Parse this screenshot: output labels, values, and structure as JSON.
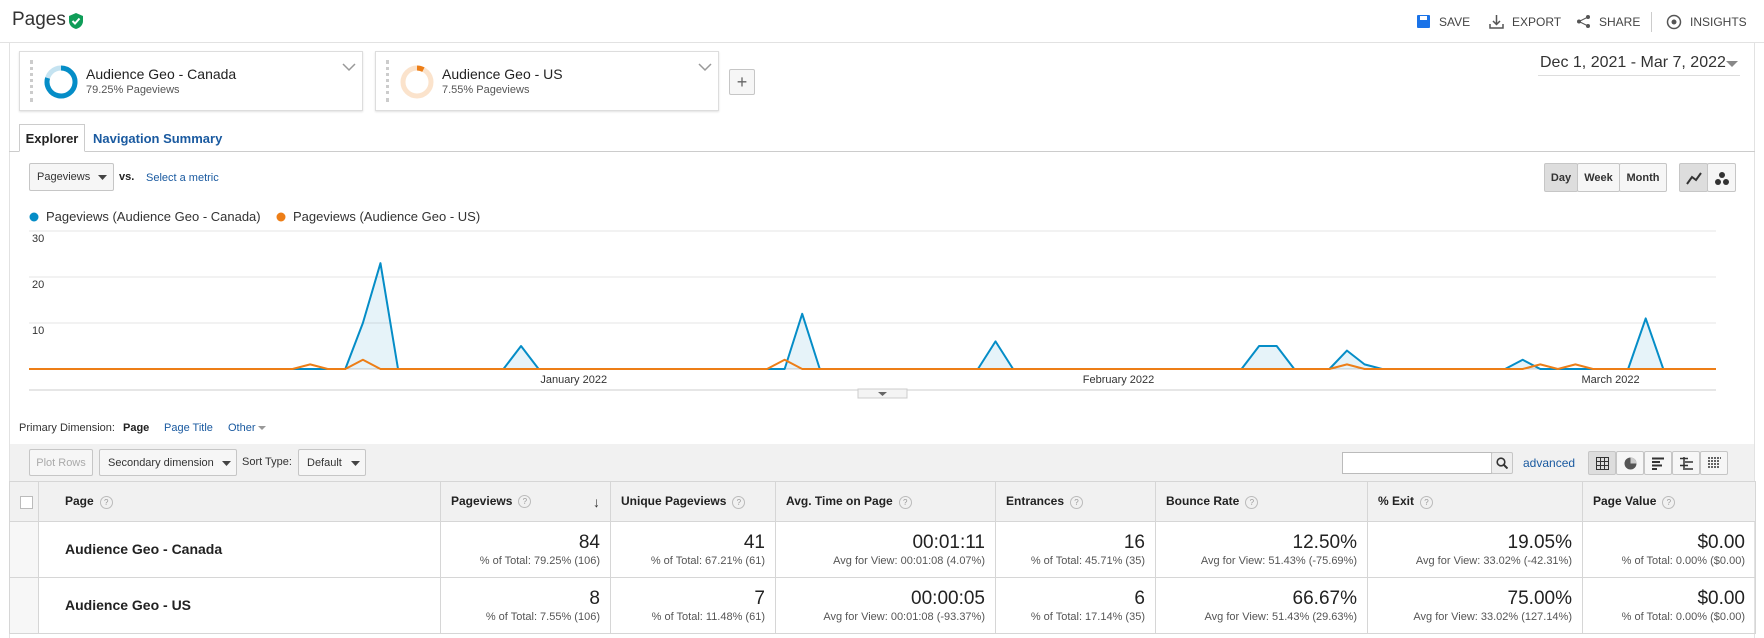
{
  "header": {
    "title": "Pages",
    "actions": [
      "SAVE",
      "EXPORT",
      "SHARE",
      "INSIGHTS"
    ]
  },
  "segments": [
    {
      "name": "Audience Geo - Canada",
      "detail": "79.25% Pageviews"
    },
    {
      "name": "Audience Geo - US",
      "detail": "7.55% Pageviews"
    }
  ],
  "date_range": "Dec 1, 2021 - Mar 7, 2022",
  "tabs": [
    "Explorer",
    "Navigation Summary"
  ],
  "metric_picker": {
    "metric": "Pageviews",
    "vs": "vs.",
    "select": "Select a metric"
  },
  "granularity": [
    "Day",
    "Week",
    "Month"
  ],
  "chart_data": {
    "type": "line",
    "grid": true,
    "xlim": [
      0,
      96
    ],
    "xticks": [
      {
        "value": 31,
        "label": "January 2022"
      },
      {
        "value": 62,
        "label": "February 2022"
      },
      {
        "value": 90,
        "label": "March 2022"
      }
    ],
    "ylim": [
      0,
      30
    ],
    "yticks": [
      10,
      20,
      30
    ],
    "series": [
      {
        "name": "Pageviews (Audience Geo - Canada)",
        "color": "#058dc7",
        "values": [
          0,
          0,
          0,
          0,
          0,
          0,
          0,
          0,
          0,
          0,
          0,
          0,
          0,
          0,
          0,
          0,
          0,
          0,
          0,
          10,
          23,
          0,
          0,
          0,
          0,
          0,
          0,
          0,
          5,
          0,
          0,
          0,
          0,
          0,
          0,
          0,
          0,
          0,
          0,
          0,
          0,
          0,
          0,
          0,
          12,
          0,
          0,
          0,
          0,
          0,
          0,
          0,
          0,
          0,
          0,
          6,
          0,
          0,
          0,
          0,
          0,
          0,
          0,
          0,
          0,
          0,
          0,
          0,
          0,
          0,
          5,
          5,
          0,
          0,
          0,
          4,
          1,
          0,
          0,
          0,
          0,
          0,
          0,
          0,
          0,
          2,
          0,
          0,
          0,
          0,
          0,
          0,
          11,
          0,
          0,
          0,
          0
        ]
      },
      {
        "name": "Pageviews (Audience Geo - US)",
        "color": "#ed7e17",
        "values": [
          0,
          0,
          0,
          0,
          0,
          0,
          0,
          0,
          0,
          0,
          0,
          0,
          0,
          0,
          0,
          0,
          1,
          0,
          0,
          2,
          0,
          0,
          0,
          0,
          0,
          0,
          0,
          0,
          0,
          0,
          0,
          0,
          0,
          0,
          0,
          0,
          0,
          0,
          0,
          0,
          0,
          0,
          0,
          2,
          0,
          0,
          0,
          0,
          0,
          0,
          0,
          0,
          0,
          0,
          0,
          0,
          0,
          0,
          0,
          0,
          0,
          0,
          0,
          0,
          0,
          0,
          0,
          0,
          0,
          0,
          0,
          0,
          0,
          0,
          0,
          1,
          0,
          0,
          0,
          0,
          0,
          0,
          0,
          0,
          0,
          0,
          1,
          0,
          1,
          0,
          0,
          0,
          0,
          0,
          0,
          0,
          0
        ]
      }
    ]
  },
  "dimension_bar": {
    "label": "Primary Dimension:",
    "options": [
      "Page",
      "Page Title",
      "Other"
    ]
  },
  "toolbar": {
    "plot_rows": "Plot Rows",
    "secondary": "Secondary dimension",
    "sort_label": "Sort Type:",
    "sort_value": "Default",
    "advanced": "advanced"
  },
  "table": {
    "columns": [
      "Page",
      "Pageviews",
      "Unique Pageviews",
      "Avg. Time on Page",
      "Entrances",
      "Bounce Rate",
      "% Exit",
      "Page Value"
    ],
    "rows": [
      [
        "Audience Geo - Canada",
        [
          "84",
          "% of Total: 79.25% (106)"
        ],
        [
          "41",
          "% of Total: 67.21% (61)"
        ],
        [
          "00:01:11",
          "Avg for View: 00:01:08 (4.07%)"
        ],
        [
          "16",
          "% of Total: 45.71% (35)"
        ],
        [
          "12.50%",
          "Avg for View: 51.43% (-75.69%)"
        ],
        [
          "19.05%",
          "Avg for View: 33.02% (-42.31%)"
        ],
        [
          "$0.00",
          "% of Total: 0.00% ($0.00)"
        ]
      ],
      [
        "Audience Geo - US",
        [
          "8",
          "% of Total: 7.55% (106)"
        ],
        [
          "7",
          "% of Total: 11.48% (61)"
        ],
        [
          "00:00:05",
          "Avg for View: 00:01:08 (-93.37%)"
        ],
        [
          "6",
          "% of Total: 17.14% (35)"
        ],
        [
          "66.67%",
          "Avg for View: 51.43% (29.63%)"
        ],
        [
          "75.00%",
          "Avg for View: 33.02% (127.14%)"
        ],
        [
          "$0.00",
          "% of Total: 0.00% ($0.00)"
        ]
      ]
    ]
  }
}
